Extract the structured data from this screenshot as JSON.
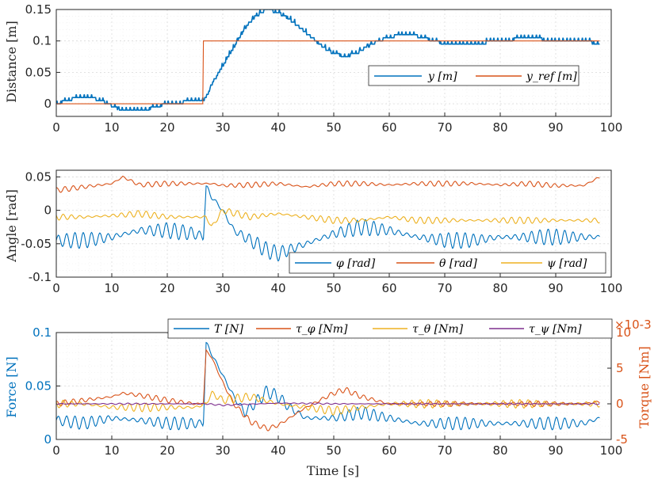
{
  "colors": {
    "blue": "#0072BD",
    "orange": "#D95319",
    "yellow": "#EDB120",
    "purple": "#7E2F8E",
    "axis": "#262626"
  },
  "chart_data": [
    {
      "type": "line",
      "ylabel": "Distance [m]",
      "xlim": [
        0,
        100
      ],
      "ylim": [
        -0.02,
        0.15
      ],
      "xticks": [
        "0",
        "10",
        "20",
        "30",
        "40",
        "50",
        "60",
        "70",
        "80",
        "90",
        "100"
      ],
      "yticks": [
        "0",
        "0.05",
        "0.1",
        "0.15"
      ],
      "ytick_values": [
        0,
        0.05,
        0.1,
        0.15
      ],
      "grid": true,
      "legend_position": "right-middle",
      "series": [
        {
          "name": "y [m]",
          "color": "#0072BD",
          "x": [
            0,
            2,
            4,
            6,
            8,
            9.5,
            10,
            12,
            14,
            16,
            18,
            20,
            22,
            24,
            26.5,
            27,
            28,
            30,
            32,
            34,
            36,
            38,
            40,
            42,
            44,
            46,
            48,
            50,
            52,
            54,
            56,
            58,
            60,
            62,
            64,
            66,
            68,
            70,
            75,
            80,
            85,
            90,
            95,
            98
          ],
          "y": [
            0,
            0.005,
            0.01,
            0.01,
            0.005,
            0,
            -0.005,
            -0.01,
            -0.01,
            -0.01,
            -0.005,
            0,
            0,
            0.005,
            0.005,
            0.01,
            0.03,
            0.06,
            0.09,
            0.12,
            0.14,
            0.15,
            0.145,
            0.135,
            0.12,
            0.105,
            0.09,
            0.08,
            0.075,
            0.08,
            0.09,
            0.1,
            0.105,
            0.11,
            0.11,
            0.105,
            0.1,
            0.095,
            0.095,
            0.1,
            0.105,
            0.1,
            0.1,
            0.095
          ]
        },
        {
          "name": "y_ref [m]",
          "color": "#D95319",
          "x": [
            0,
            26.5,
            26.5,
            98
          ],
          "y": [
            0,
            0,
            0.1,
            0.1
          ]
        }
      ]
    },
    {
      "type": "line",
      "ylabel": "Angle [rad]",
      "xlim": [
        0,
        100
      ],
      "ylim": [
        -0.1,
        0.06
      ],
      "xticks": [
        "0",
        "10",
        "20",
        "30",
        "40",
        "50",
        "60",
        "70",
        "80",
        "90",
        "100"
      ],
      "yticks": [
        "-0.1",
        "-0.05",
        "0",
        "0.05"
      ],
      "ytick_values": [
        -0.1,
        -0.05,
        0,
        0.05
      ],
      "grid": true,
      "legend_position": "bottom-right",
      "series": [
        {
          "name": "φ [rad]",
          "color": "#0072BD",
          "x": [
            0,
            5,
            10,
            15,
            20,
            25,
            26.5,
            27,
            28,
            30,
            32,
            35,
            38,
            40,
            45,
            50,
            55,
            60,
            65,
            70,
            75,
            80,
            85,
            90,
            95,
            98
          ],
          "y": [
            -0.045,
            -0.045,
            -0.04,
            -0.03,
            -0.03,
            -0.035,
            -0.04,
            0.035,
            0.02,
            0,
            -0.03,
            -0.045,
            -0.06,
            -0.065,
            -0.05,
            -0.035,
            -0.025,
            -0.03,
            -0.04,
            -0.045,
            -0.045,
            -0.04,
            -0.04,
            -0.04,
            -0.04,
            -0.04
          ],
          "osc": 0.012
        },
        {
          "name": "θ [rad]",
          "color": "#D95319",
          "x": [
            0,
            5,
            10,
            12,
            15,
            20,
            25,
            28,
            30,
            35,
            40,
            45,
            50,
            55,
            60,
            65,
            70,
            75,
            80,
            85,
            90,
            95,
            98
          ],
          "y": [
            0.03,
            0.035,
            0.04,
            0.05,
            0.038,
            0.04,
            0.04,
            0.04,
            0.037,
            0.038,
            0.04,
            0.035,
            0.04,
            0.04,
            0.038,
            0.04,
            0.04,
            0.04,
            0.038,
            0.04,
            0.037,
            0.037,
            0.05
          ],
          "osc": 0.004
        },
        {
          "name": "ψ [rad]",
          "color": "#EDB120",
          "x": [
            0,
            5,
            10,
            15,
            20,
            25,
            27,
            28,
            30,
            35,
            40,
            45,
            50,
            55,
            60,
            65,
            70,
            75,
            80,
            85,
            90,
            95,
            98
          ],
          "y": [
            -0.01,
            -0.01,
            -0.008,
            -0.005,
            -0.01,
            -0.01,
            -0.01,
            -0.025,
            0,
            -0.01,
            -0.005,
            -0.01,
            -0.015,
            -0.015,
            -0.01,
            -0.015,
            -0.015,
            -0.015,
            -0.015,
            -0.015,
            -0.015,
            -0.015,
            -0.015
          ],
          "osc": 0.005
        }
      ]
    },
    {
      "type": "line",
      "xlabel": "Time [s]",
      "ylabel": "Force [N]",
      "ylabel_right": "Torque [Nm]",
      "y_right_exponent": "×10-3",
      "xlim": [
        0,
        100
      ],
      "ylim": [
        0,
        0.1
      ],
      "ylim_right": [
        -5,
        10
      ],
      "xticks": [
        "0",
        "10",
        "20",
        "30",
        "40",
        "50",
        "60",
        "70",
        "80",
        "90",
        "100"
      ],
      "yticks": [
        "0",
        "0.05",
        "0.1"
      ],
      "ytick_values": [
        0,
        0.05,
        0.1
      ],
      "yticks_right": [
        "-5",
        "0",
        "5",
        "10"
      ],
      "ytick_right_values": [
        -5,
        0,
        5,
        10
      ],
      "grid": true,
      "legend_position": "top",
      "series": [
        {
          "name": "T [N]",
          "color": "#0072BD",
          "axis": "left",
          "x": [
            0,
            5,
            10,
            15,
            20,
            25,
            26.5,
            27,
            28,
            30,
            32,
            34,
            36,
            38,
            40,
            42,
            45,
            50,
            55,
            60,
            65,
            70,
            75,
            80,
            85,
            90,
            95,
            98
          ],
          "y": [
            0.018,
            0.015,
            0.02,
            0.018,
            0.015,
            0.015,
            0.015,
            0.09,
            0.08,
            0.06,
            0.04,
            0.025,
            0.035,
            0.045,
            0.04,
            0.03,
            0.02,
            0.02,
            0.025,
            0.02,
            0.015,
            0.015,
            0.015,
            0.015,
            0.015,
            0.015,
            0.015,
            0.02
          ],
          "osc": 0.006
        },
        {
          "name": "τ_φ [Nm]",
          "color": "#D95319",
          "axis": "right",
          "x": [
            0,
            5,
            10,
            12,
            15,
            20,
            25,
            26.5,
            27,
            28,
            30,
            32,
            35,
            38,
            40,
            45,
            50,
            52,
            55,
            60,
            65,
            70,
            75,
            80,
            85,
            90,
            95,
            98
          ],
          "y": [
            0,
            0.5,
            1,
            1.5,
            1.2,
            0.5,
            0,
            0,
            7.5,
            6.5,
            3,
            0,
            -2.5,
            -3.5,
            -3,
            -0.5,
            1.5,
            2,
            1,
            0,
            0,
            0,
            0,
            0,
            0,
            0,
            0,
            0.3
          ],
          "osc": 0.4
        },
        {
          "name": "τ_θ [Nm]",
          "color": "#EDB120",
          "axis": "right",
          "x": [
            0,
            5,
            10,
            15,
            20,
            25,
            27,
            28,
            30,
            35,
            40,
            45,
            50,
            55,
            60,
            70,
            80,
            90,
            98
          ],
          "y": [
            0,
            0,
            -0.5,
            -0.5,
            -0.5,
            -0.5,
            0,
            1.5,
            0.5,
            1,
            0,
            -0.5,
            -1,
            -0.5,
            0,
            0,
            0,
            0,
            0
          ],
          "osc": 0.6
        },
        {
          "name": "τ_ψ [Nm]",
          "color": "#7E2F8E",
          "axis": "right",
          "x": [
            0,
            20,
            27,
            30,
            40,
            50,
            60,
            70,
            80,
            90,
            98
          ],
          "y": [
            0,
            0,
            0,
            -0.2,
            0.1,
            0,
            0,
            0,
            0,
            0,
            0
          ],
          "osc": 0.1
        }
      ]
    }
  ]
}
